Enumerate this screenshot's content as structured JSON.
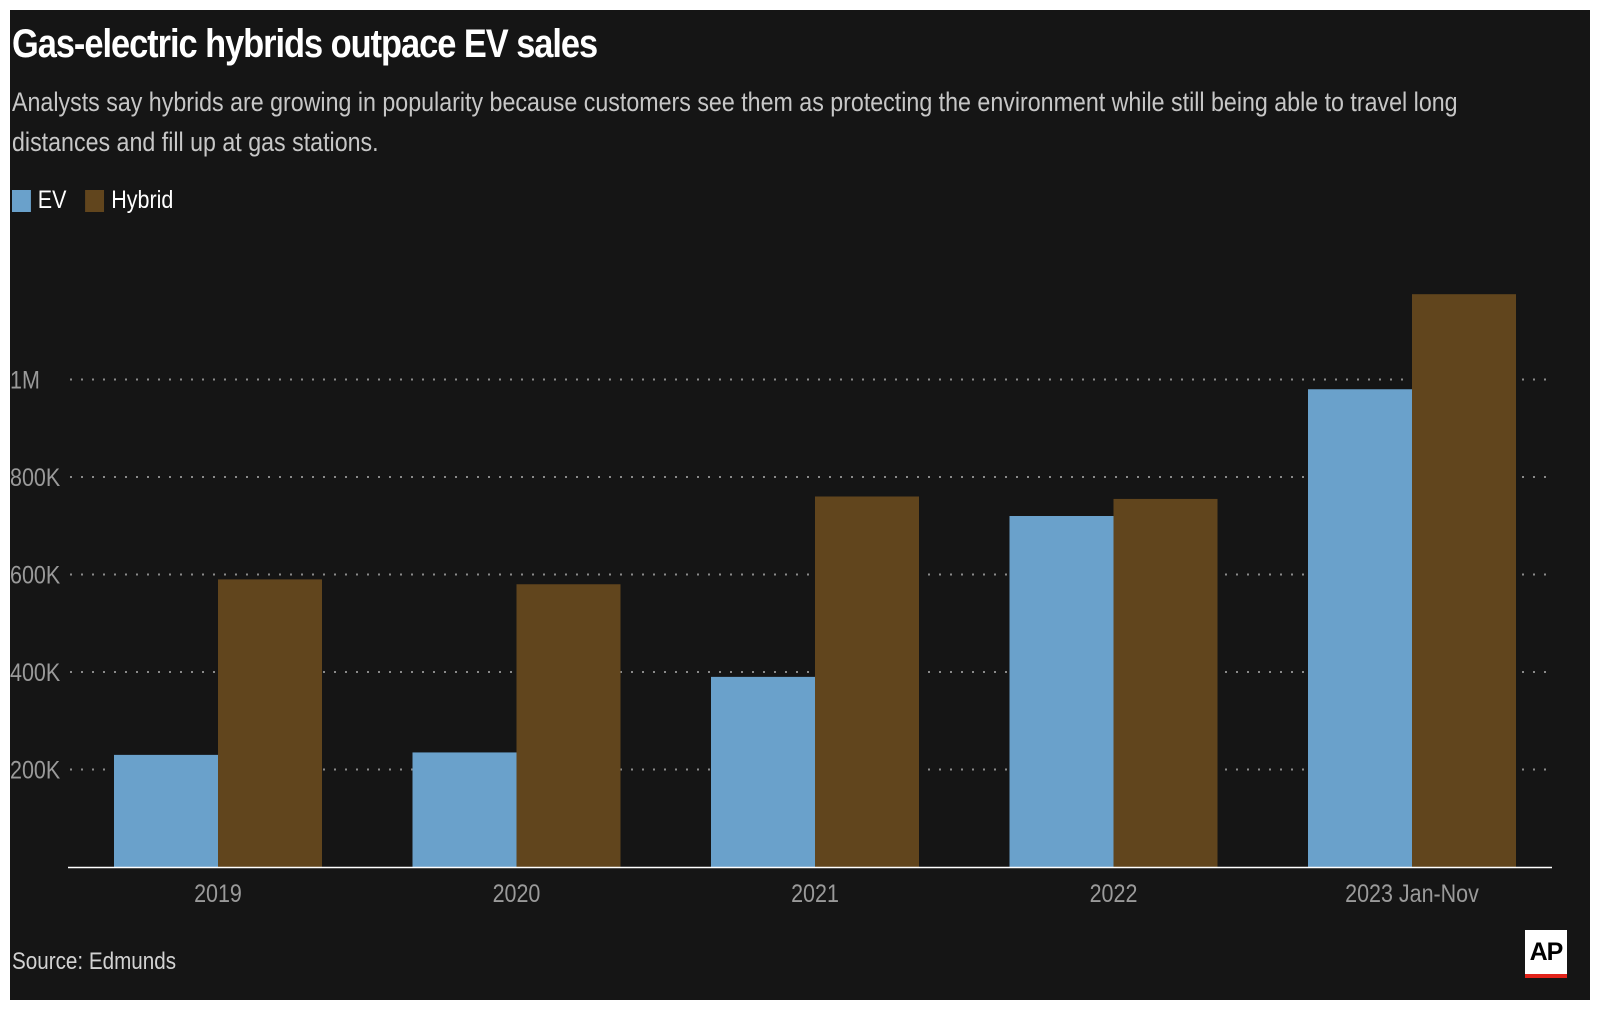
{
  "title": "Gas-electric hybrids outpace EV sales",
  "subtitle": "Analysts say hybrids are growing in popularity because customers see them as protecting the environment while still being able to travel long distances and fill up at gas stations.",
  "source": "Source: Edmunds",
  "logo_text": "AP",
  "colors": {
    "background": "#151515",
    "ev": "#6aa1cb",
    "hybrid": "#61451d",
    "gridline": "#8a8a8a",
    "axis": "#ffffff",
    "logo_accent": "#e2231a"
  },
  "chart_data": {
    "type": "bar",
    "categories": [
      "2019",
      "2020",
      "2021",
      "2022",
      "2023 Jan-Nov"
    ],
    "series": [
      {
        "name": "EV",
        "values": [
          230000,
          235000,
          390000,
          720000,
          980000
        ]
      },
      {
        "name": "Hybrid",
        "values": [
          590000,
          580000,
          760000,
          755000,
          1175000
        ]
      }
    ],
    "title": "Gas-electric hybrids outpace EV sales",
    "xlabel": "",
    "ylabel": "",
    "ylim": [
      0,
      1200000
    ],
    "yticks": [
      {
        "value": 200000,
        "label": "200K"
      },
      {
        "value": 400000,
        "label": "400K"
      },
      {
        "value": 600000,
        "label": "600K"
      },
      {
        "value": 800000,
        "label": "800K"
      },
      {
        "value": 1000000,
        "label": "1M"
      }
    ],
    "grid": "horizontal dotted",
    "legend_position": "top-left"
  }
}
